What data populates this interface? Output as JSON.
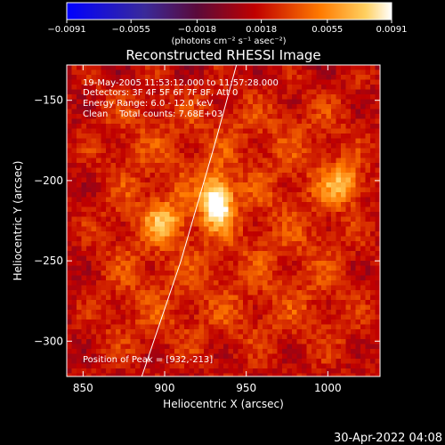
{
  "chart_data": {
    "type": "heatmap",
    "title": "Reconstructed RHESSI Image",
    "xlabel": "Heliocentric X (arcsec)",
    "ylabel": "Heliocentric Y (arcsec)",
    "xlim": [
      840,
      1032
    ],
    "ylim": [
      -322,
      -128
    ],
    "xticks": [
      850,
      900,
      950,
      1000
    ],
    "yticks": [
      -150,
      -200,
      -250,
      -300
    ],
    "xtick_labels": [
      "850",
      "900",
      "950",
      "1000"
    ],
    "ytick_labels": [
      "−150",
      "−200",
      "−250",
      "−300"
    ],
    "colorbar": {
      "range": [
        -0.0091,
        0.0091
      ],
      "ticks": [
        -0.0091,
        -0.0055,
        -0.0018,
        0.0018,
        0.0055,
        0.0091
      ],
      "tick_labels": [
        "−0.0091",
        "−0.0055",
        "−0.0018",
        "0.0018",
        "0.0055",
        "0.0091"
      ],
      "units_label": "(photons cm⁻² s⁻¹ asec⁻²)",
      "colors": [
        "#0000ff",
        "#4a1a8a",
        "#8a0000",
        "#ff2000",
        "#ff9000",
        "#ffffff"
      ]
    },
    "annotations": [
      "19-May-2005 11:53:12.000 to 11:57:28.000",
      "Detectors: 3F 4F 5F 6F 7F 8F, Att 0",
      "Energy Range: 6.0 - 12.0 keV",
      "Clean    Total counts: 7.68E+03"
    ],
    "peak_label": "Position of Peak = [932,-213]",
    "peak": {
      "x": 932,
      "y": -213
    },
    "sources": [
      {
        "x": 932,
        "y": -213,
        "amplitude": 0.0091
      },
      {
        "x": 1010,
        "y": -202,
        "amplitude": 0.0048
      },
      {
        "x": 900,
        "y": -225,
        "amplitude": 0.004
      }
    ],
    "limb_curve": [
      {
        "x": 944,
        "y": -128
      },
      {
        "x": 930,
        "y": -180
      },
      {
        "x": 910,
        "y": -250
      },
      {
        "x": 886,
        "y": -322
      }
    ]
  },
  "footer": {
    "timestamp": "30-Apr-2022 04:08"
  }
}
